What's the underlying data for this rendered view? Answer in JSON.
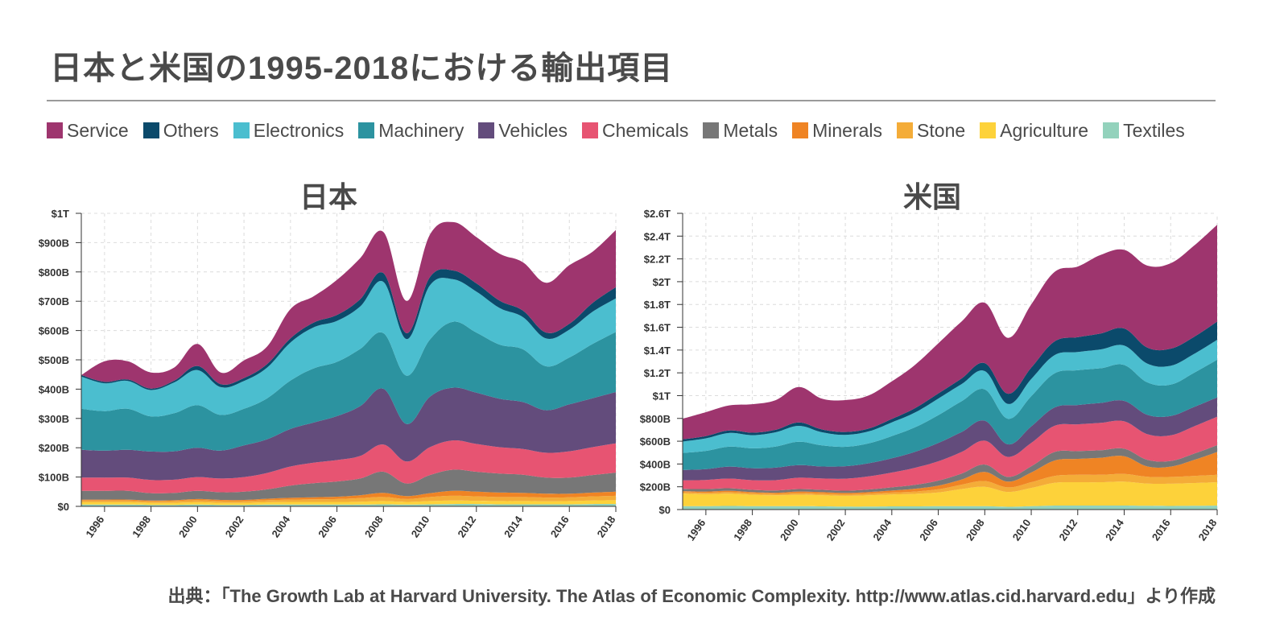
{
  "title": "日本と米国の1995-2018における輸出項目",
  "source": "出典：「The Growth Lab at Harvard University. The Atlas of Economic Complexity. http://www.atlas.cid.harvard.edu」より作成",
  "legend": [
    {
      "name": "Service",
      "color": "#9e356e"
    },
    {
      "name": "Others",
      "color": "#0b4a6b"
    },
    {
      "name": "Electronics",
      "color": "#4bbecf"
    },
    {
      "name": "Machinery",
      "color": "#2c93a0"
    },
    {
      "name": "Vehicles",
      "color": "#634c7c"
    },
    {
      "name": "Chemicals",
      "color": "#e75472"
    },
    {
      "name": "Metals",
      "color": "#777777"
    },
    {
      "name": "Minerals",
      "color": "#ef8424"
    },
    {
      "name": "Stone",
      "color": "#f4ac38"
    },
    {
      "name": "Agriculture",
      "color": "#fdd23a"
    },
    {
      "name": "Textiles",
      "color": "#93d2bc"
    }
  ],
  "chart_data": [
    {
      "type": "area",
      "title": "日本",
      "x": [
        1995,
        1996,
        1997,
        1998,
        1999,
        2000,
        2001,
        2002,
        2003,
        2004,
        2005,
        2006,
        2007,
        2008,
        2009,
        2010,
        2011,
        2012,
        2013,
        2014,
        2015,
        2016,
        2017,
        2018
      ],
      "ylim": [
        0,
        1000
      ],
      "yticks": [
        0,
        100,
        200,
        300,
        400,
        500,
        600,
        700,
        800,
        900,
        1000
      ],
      "ytick_labels": [
        "$0",
        "$100B",
        "$200B",
        "$300B",
        "$400B",
        "$500B",
        "$600B",
        "$700B",
        "$800B",
        "$900B",
        "$1T"
      ],
      "xticks": [
        1996,
        1998,
        2000,
        2002,
        2004,
        2006,
        2008,
        2010,
        2012,
        2014,
        2016,
        2018
      ],
      "series": [
        {
          "name": "Textiles",
          "values": [
            6,
            6,
            6,
            5,
            5,
            6,
            5,
            5,
            6,
            6,
            6,
            6,
            6,
            7,
            6,
            7,
            8,
            8,
            7,
            7,
            7,
            7,
            8,
            8
          ]
        },
        {
          "name": "Agriculture",
          "values": [
            8,
            8,
            8,
            7,
            7,
            8,
            7,
            7,
            8,
            9,
            9,
            9,
            10,
            11,
            9,
            11,
            12,
            11,
            11,
            11,
            10,
            11,
            12,
            13
          ]
        },
        {
          "name": "Stone",
          "values": [
            6,
            6,
            6,
            5,
            6,
            7,
            6,
            6,
            7,
            8,
            9,
            10,
            12,
            14,
            10,
            14,
            16,
            15,
            14,
            14,
            13,
            13,
            14,
            15
          ]
        },
        {
          "name": "Minerals",
          "values": [
            3,
            3,
            3,
            3,
            3,
            4,
            4,
            4,
            5,
            6,
            7,
            8,
            10,
            14,
            10,
            13,
            17,
            16,
            15,
            14,
            13,
            12,
            13,
            14
          ]
        },
        {
          "name": "Metals",
          "values": [
            30,
            30,
            30,
            25,
            25,
            28,
            26,
            28,
            32,
            42,
            48,
            52,
            57,
            72,
            43,
            62,
            72,
            68,
            65,
            62,
            55,
            55,
            60,
            65
          ]
        },
        {
          "name": "Chemicals",
          "values": [
            45,
            45,
            45,
            45,
            45,
            47,
            47,
            50,
            56,
            65,
            70,
            73,
            77,
            93,
            75,
            95,
            100,
            95,
            90,
            88,
            85,
            90,
            95,
            100
          ]
        },
        {
          "name": "Vehicles",
          "values": [
            95,
            92,
            95,
            97,
            97,
            100,
            95,
            108,
            115,
            128,
            137,
            150,
            170,
            190,
            128,
            172,
            180,
            175,
            165,
            160,
            145,
            160,
            167,
            175
          ]
        },
        {
          "name": "Machinery",
          "values": [
            140,
            135,
            140,
            120,
            130,
            145,
            122,
            125,
            140,
            165,
            185,
            185,
            195,
            190,
            165,
            195,
            225,
            205,
            185,
            180,
            150,
            160,
            185,
            205
          ]
        },
        {
          "name": "Electronics",
          "values": [
            110,
            95,
            95,
            90,
            105,
            120,
            95,
            95,
            105,
            130,
            140,
            140,
            145,
            175,
            125,
            185,
            145,
            140,
            125,
            110,
            95,
            95,
            110,
            115
          ]
        },
        {
          "name": "Others",
          "values": [
            5,
            5,
            5,
            5,
            6,
            14,
            10,
            10,
            12,
            14,
            16,
            20,
            25,
            30,
            20,
            28,
            30,
            28,
            25,
            22,
            20,
            20,
            30,
            38
          ]
        },
        {
          "name": "Service",
          "values": [
            0,
            70,
            62,
            55,
            45,
            75,
            40,
            60,
            60,
            100,
            90,
            120,
            140,
            140,
            110,
            145,
            165,
            158,
            160,
            165,
            170,
            200,
            175,
            195
          ]
        }
      ]
    },
    {
      "type": "area",
      "title": "米国",
      "x": [
        1995,
        1996,
        1997,
        1998,
        1999,
        2000,
        2001,
        2002,
        2003,
        2004,
        2005,
        2006,
        2007,
        2008,
        2009,
        2010,
        2011,
        2012,
        2013,
        2014,
        2015,
        2016,
        2017,
        2018
      ],
      "ylim": [
        0,
        2600
      ],
      "yticks": [
        0,
        200,
        400,
        600,
        800,
        1000,
        1200,
        1400,
        1600,
        1800,
        2000,
        2200,
        2400,
        2600
      ],
      "ytick_labels": [
        "$0",
        "$200B",
        "$400B",
        "$600B",
        "$800B",
        "$1T",
        "$1.2T",
        "$1.4T",
        "$1.6T",
        "$1.8T",
        "$2T",
        "$2.2T",
        "$2.4T",
        "$2.6T"
      ],
      "xticks": [
        1996,
        1998,
        2000,
        2002,
        2004,
        2006,
        2008,
        2010,
        2012,
        2014,
        2016,
        2018
      ],
      "series": [
        {
          "name": "Textiles",
          "values": [
            30,
            30,
            32,
            30,
            30,
            30,
            28,
            26,
            26,
            28,
            28,
            30,
            30,
            30,
            25,
            30,
            35,
            35,
            35,
            35,
            33,
            32,
            33,
            35
          ]
        },
        {
          "name": "Agriculture",
          "values": [
            110,
            105,
            108,
            100,
            95,
            100,
            98,
            95,
            100,
            105,
            110,
            120,
            150,
            170,
            130,
            160,
            200,
            205,
            205,
            210,
            195,
            195,
            200,
            205
          ]
        },
        {
          "name": "Stone",
          "values": [
            12,
            12,
            13,
            13,
            13,
            14,
            14,
            13,
            14,
            16,
            20,
            28,
            38,
            50,
            40,
            50,
            60,
            65,
            65,
            68,
            60,
            60,
            62,
            65
          ]
        },
        {
          "name": "Minerals",
          "values": [
            10,
            11,
            12,
            10,
            10,
            14,
            13,
            12,
            14,
            18,
            25,
            32,
            45,
            80,
            50,
            85,
            135,
            140,
            150,
            155,
            90,
            90,
            140,
            200
          ]
        },
        {
          "name": "Metals",
          "values": [
            20,
            22,
            22,
            20,
            20,
            22,
            20,
            20,
            22,
            28,
            34,
            44,
            52,
            65,
            42,
            55,
            75,
            68,
            66,
            66,
            58,
            50,
            55,
            60
          ]
        },
        {
          "name": "Chemicals",
          "values": [
            75,
            80,
            85,
            85,
            90,
            100,
            100,
            105,
            115,
            130,
            150,
            170,
            190,
            210,
            175,
            205,
            230,
            235,
            240,
            240,
            225,
            225,
            240,
            250
          ]
        },
        {
          "name": "Vehicles",
          "values": [
            90,
            95,
            105,
            105,
            110,
            110,
            105,
            110,
            115,
            125,
            140,
            160,
            175,
            175,
            110,
            145,
            160,
            170,
            175,
            180,
            170,
            170,
            170,
            170
          ]
        },
        {
          "name": "Machinery",
          "values": [
            150,
            160,
            175,
            175,
            185,
            205,
            185,
            170,
            175,
            195,
            215,
            245,
            270,
            275,
            225,
            265,
            300,
            305,
            305,
            315,
            285,
            275,
            300,
            330
          ]
        },
        {
          "name": "Electronics",
          "values": [
            100,
            110,
            120,
            115,
            125,
            140,
            115,
            105,
            105,
            120,
            130,
            145,
            150,
            160,
            130,
            150,
            160,
            160,
            165,
            170,
            165,
            165,
            165,
            175
          ]
        },
        {
          "name": "Others",
          "values": [
            20,
            20,
            22,
            22,
            22,
            30,
            25,
            25,
            25,
            30,
            38,
            45,
            50,
            70,
            90,
            100,
            120,
            130,
            140,
            150,
            140,
            150,
            150,
            160
          ]
        },
        {
          "name": "Service",
          "values": [
            180,
            210,
            220,
            250,
            260,
            310,
            270,
            280,
            290,
            330,
            380,
            440,
            500,
            530,
            490,
            555,
            610,
            620,
            690,
            690,
            720,
            750,
            800,
            850
          ]
        }
      ]
    }
  ]
}
